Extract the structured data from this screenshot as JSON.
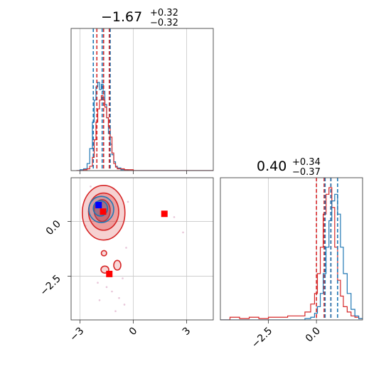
{
  "chart_data": [
    {
      "type": "histogram",
      "panel": "top-left",
      "title": {
        "value": "−1.67",
        "plus": "+0.32",
        "minus": "−0.32"
      },
      "xlim": [
        -3.5,
        4.5
      ],
      "grid": true,
      "quantile_lines": [
        {
          "color": "#1f77b4",
          "x": [
            -2.25,
            -1.75,
            -1.3
          ]
        },
        {
          "color": "#d62728",
          "x": [
            -2.05,
            -1.67,
            -1.35
          ]
        }
      ],
      "series": [
        {
          "color": "#1f77b4",
          "x": [
            -3.2,
            -3.0,
            -2.8,
            -2.6,
            -2.45,
            -2.3,
            -2.2,
            -2.1,
            -2.0,
            -1.9,
            -1.8,
            -1.7,
            -1.6,
            -1.5,
            -1.4,
            -1.3,
            -1.2,
            -1.1,
            -1.0,
            -0.9,
            -0.7,
            -0.5,
            -0.3,
            0.0
          ],
          "values": [
            0,
            0.01,
            0.02,
            0.08,
            0.25,
            0.55,
            0.8,
            0.95,
            1.0,
            0.92,
            0.98,
            0.9,
            0.75,
            0.6,
            0.42,
            0.3,
            0.18,
            0.1,
            0.05,
            0.03,
            0.01,
            0.01,
            0,
            0
          ]
        },
        {
          "color": "#d62728",
          "x": [
            -3.2,
            -3.0,
            -2.8,
            -2.6,
            -2.45,
            -2.3,
            -2.2,
            -2.1,
            -2.0,
            -1.9,
            -1.8,
            -1.7,
            -1.6,
            -1.5,
            -1.4,
            -1.3,
            -1.2,
            -1.1,
            -1.0,
            -0.9,
            -0.7,
            -0.5,
            -0.3,
            0.0
          ],
          "values": [
            0,
            0,
            0.01,
            0.02,
            0.05,
            0.15,
            0.35,
            0.55,
            0.7,
            0.8,
            0.85,
            0.8,
            0.72,
            0.6,
            0.5,
            0.38,
            0.2,
            0.08,
            0.04,
            0.02,
            0.02,
            0.01,
            0.01,
            0
          ]
        }
      ]
    },
    {
      "type": "histogram",
      "panel": "bottom-right",
      "title": {
        "value": "0.40",
        "plus": "+0.34",
        "minus": "−0.37"
      },
      "xlim": [
        -5.0,
        2.4
      ],
      "tick_labels": [
        "−2.5",
        "0.0"
      ],
      "grid": true,
      "quantile_lines": [
        {
          "color": "#d62728",
          "x": [
            0.0,
            0.4,
            0.75
          ]
        },
        {
          "color": "#1f77b4",
          "x": [
            0.45,
            0.75,
            1.1
          ]
        }
      ],
      "series": [
        {
          "color": "#d62728",
          "x": [
            -5.0,
            -4.5,
            -4.0,
            -3.5,
            -3.0,
            -2.5,
            -2.0,
            -1.5,
            -1.0,
            -0.6,
            -0.3,
            -0.1,
            0.05,
            0.2,
            0.35,
            0.5,
            0.65,
            0.8,
            0.95,
            1.1,
            1.25,
            1.4,
            1.6,
            1.8,
            2.0,
            2.2
          ],
          "values": [
            0,
            0.02,
            0.01,
            0.02,
            0.01,
            0.02,
            0.02,
            0.03,
            0.03,
            0.06,
            0.12,
            0.2,
            0.35,
            0.55,
            0.8,
            0.95,
            1.0,
            0.85,
            0.55,
            0.3,
            0.18,
            0.1,
            0.06,
            0.03,
            0.02,
            0.01
          ]
        },
        {
          "color": "#1f77b4",
          "x": [
            -5.0,
            -4.5,
            -4.0,
            -3.5,
            -3.0,
            -2.5,
            -2.0,
            -1.5,
            -1.0,
            -0.6,
            -0.3,
            -0.1,
            0.05,
            0.2,
            0.35,
            0.5,
            0.65,
            0.8,
            0.95,
            1.1,
            1.25,
            1.4,
            1.6,
            1.8,
            2.0,
            2.2
          ],
          "values": [
            0,
            0,
            0,
            0,
            0,
            0,
            0,
            0,
            0,
            0.01,
            0.02,
            0.05,
            0.1,
            0.2,
            0.35,
            0.55,
            0.75,
            0.9,
            0.95,
            0.8,
            0.55,
            0.35,
            0.2,
            0.08,
            0.03,
            0.01
          ]
        }
      ]
    },
    {
      "type": "contour",
      "panel": "bottom-left",
      "xlim": [
        -3.5,
        4.5
      ],
      "ylim": [
        -4.5,
        2.0
      ],
      "x_tick_labels": [
        "−3",
        "0",
        "3"
      ],
      "y_tick_labels": [
        "0.0",
        "−2.5"
      ],
      "grid": true,
      "series": [
        {
          "color": "#d62728",
          "blobs": [
            {
              "cx": -1.67,
              "cy": 0.4,
              "rx": 1.2,
              "ry": 1.25,
              "fill": 0.35
            },
            {
              "cx": -1.67,
              "cy": 0.45,
              "rx": 0.85,
              "ry": 0.85,
              "fill": 0.5
            },
            {
              "cx": -1.75,
              "cy": 0.5,
              "rx": 0.45,
              "ry": 0.5,
              "fill": 0.7
            },
            {
              "cx": -1.65,
              "cy": -1.45,
              "rx": 0.15,
              "ry": 0.12,
              "fill": 0.3
            },
            {
              "cx": -1.6,
              "cy": -2.2,
              "rx": 0.22,
              "ry": 0.16,
              "fill": 0.3
            },
            {
              "cx": -0.9,
              "cy": -2.0,
              "rx": 0.2,
              "ry": 0.22,
              "fill": 0.3
            }
          ]
        },
        {
          "color": "#1f77b4",
          "blobs": [
            {
              "cx": -1.8,
              "cy": 0.55,
              "rx": 0.7,
              "ry": 0.6,
              "fill": 0.25
            },
            {
              "cx": -1.85,
              "cy": 0.6,
              "rx": 0.4,
              "ry": 0.35,
              "fill": 0.35
            }
          ]
        }
      ],
      "markers": [
        {
          "color": "#ff0000",
          "x": 1.75,
          "y": 0.35
        },
        {
          "color": "#ff0000",
          "x": -1.35,
          "y": -2.4
        },
        {
          "color": "#ff0000",
          "x": -1.7,
          "y": 0.45
        },
        {
          "color": "#0000ff",
          "x": -1.95,
          "y": 0.75
        }
      ],
      "scatter_points": [
        {
          "x": -1.2,
          "y": -3.2
        },
        {
          "x": -0.8,
          "y": -3.5
        },
        {
          "x": -1.5,
          "y": -3.0
        },
        {
          "x": -0.5,
          "y": -3.8
        },
        {
          "x": -1.0,
          "y": -4.1
        },
        {
          "x": -2.0,
          "y": -2.8
        },
        {
          "x": -0.6,
          "y": -2.6
        },
        {
          "x": -1.9,
          "y": -3.6
        },
        {
          "x": 2.3,
          "y": 0.2
        },
        {
          "x": 2.8,
          "y": -0.5
        },
        {
          "x": -0.3,
          "y": 0.9
        },
        {
          "x": -2.4,
          "y": 1.6
        },
        {
          "x": -1.1,
          "y": 1.5
        },
        {
          "x": -0.4,
          "y": -1.2
        },
        {
          "x": -2.7,
          "y": -0.2
        }
      ]
    }
  ]
}
